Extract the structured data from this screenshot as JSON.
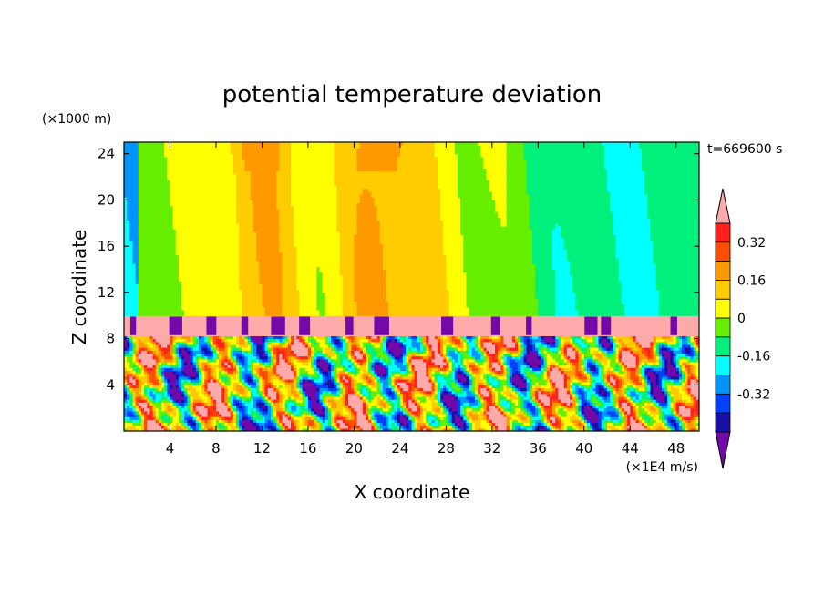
{
  "chart_data": {
    "type": "heatmap",
    "title": "potential temperature deviation",
    "xlabel": "X coordinate",
    "ylabel": "Z coordinate",
    "x_unit": "(×1E4 m/s)",
    "y_unit": "(×1000 m)",
    "time_label": "t=669600 s",
    "xlim": [
      0,
      50
    ],
    "ylim": [
      0,
      25
    ],
    "x_ticks": [
      4,
      8,
      12,
      16,
      20,
      24,
      28,
      32,
      36,
      40,
      44,
      48
    ],
    "y_ticks": [
      4,
      8,
      12,
      16,
      20,
      24
    ],
    "colorbar": {
      "levels": [
        -0.48,
        -0.4,
        -0.32,
        -0.24,
        -0.16,
        -0.08,
        0,
        0.08,
        0.16,
        0.24,
        0.32,
        0.4
      ],
      "colors": [
        "#7209a8",
        "#1a0fa5",
        "#0040ff",
        "#0094ff",
        "#00ffff",
        "#00f07c",
        "#66ee00",
        "#ffff00",
        "#ffcc00",
        "#ff9900",
        "#ff4d00",
        "#ff2020",
        "#ffaaaa"
      ],
      "tick_labels": [
        "0.32",
        "0.16",
        "0",
        "-0.16",
        "-0.32"
      ],
      "tick_values": [
        0.32,
        0.16,
        0,
        -0.16,
        -0.32
      ]
    },
    "grid": false
  }
}
